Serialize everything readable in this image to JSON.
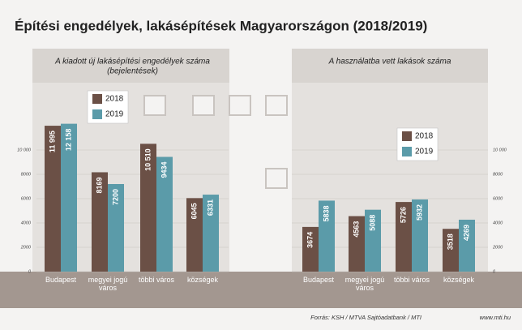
{
  "title": "Építési engedélyek, lakásépítések Magyarországon (2018/2019)",
  "source": "Forrás: KSH / MTVA Sajtóadatbank / MTI",
  "website": "www.mti.hu",
  "chart_data": [
    {
      "type": "bar",
      "title": "A kiadott új lakásépítési engedélyek száma",
      "subtitle": "(bejelentések)",
      "categories": [
        "Budapest",
        "megyei jogú város",
        "többi város",
        "községek"
      ],
      "series": [
        {
          "name": "2018",
          "color": "#6b5046",
          "values": [
            11995,
            8169,
            10510,
            6045
          ],
          "value_labels": [
            "11 995",
            "8169",
            "10 510",
            "6045"
          ]
        },
        {
          "name": "2019",
          "color": "#5b9ba9",
          "values": [
            12158,
            7200,
            9434,
            6331
          ],
          "value_labels": [
            "12 158",
            "7200",
            "9434",
            "6331"
          ]
        }
      ],
      "ylim": [
        0,
        14500
      ],
      "yticks": [
        0,
        2000,
        4000,
        6000,
        8000,
        {
          "value": 10000,
          "label": "10 000"
        }
      ],
      "grid": true
    },
    {
      "type": "bar",
      "title": "A használatba vett lakások száma",
      "categories": [
        "Budapest",
        "megyei jogú város",
        "többi város",
        "községek"
      ],
      "series": [
        {
          "name": "2018",
          "color": "#6b5046",
          "values": [
            3674,
            4563,
            5726,
            3518
          ]
        },
        {
          "name": "2019",
          "color": "#5b9ba9",
          "values": [
            5838,
            5088,
            5932,
            4269
          ]
        }
      ],
      "ylim": [
        0,
        14500
      ],
      "yticks": [
        0,
        2000,
        4000,
        6000,
        8000,
        {
          "value": 10000,
          "label": "10 000"
        }
      ],
      "grid": true
    }
  ]
}
